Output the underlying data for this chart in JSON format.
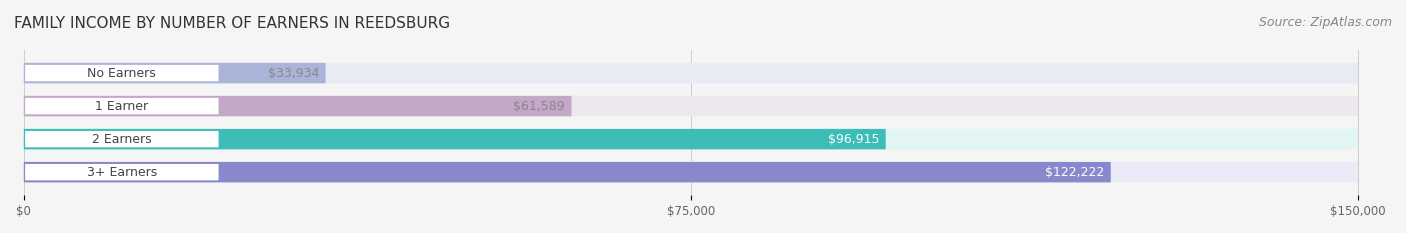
{
  "title": "FAMILY INCOME BY NUMBER OF EARNERS IN REEDSBURG",
  "source": "Source: ZipAtlas.com",
  "categories": [
    "No Earners",
    "1 Earner",
    "2 Earners",
    "3+ Earners"
  ],
  "values": [
    33934,
    61589,
    96915,
    122222
  ],
  "bar_colors": [
    "#aab4d8",
    "#c4a8c8",
    "#3dbdb8",
    "#8888cc"
  ],
  "bar_bg_colors": [
    "#e8eaf4",
    "#ede8f0",
    "#e0f5f4",
    "#eaeaf8"
  ],
  "label_colors": [
    "#888888",
    "#888888",
    "#ffffff",
    "#ffffff"
  ],
  "xlim": [
    0,
    150000
  ],
  "xticks": [
    0,
    75000,
    150000
  ],
  "xtick_labels": [
    "$0",
    "$75,000",
    "$150,000"
  ],
  "title_fontsize": 11,
  "source_fontsize": 9,
  "bar_label_fontsize": 9,
  "category_fontsize": 9,
  "background_color": "#f5f5f5",
  "bar_bg_color": "#f0f0f0"
}
